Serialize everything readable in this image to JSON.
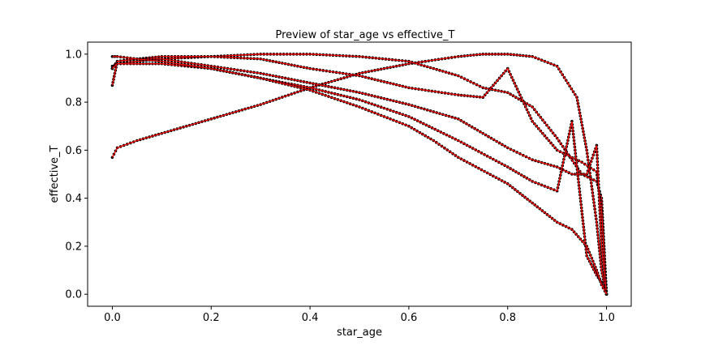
{
  "chart_data": {
    "type": "line",
    "title": "Preview of star_age vs effective_T",
    "xlabel": "star_age",
    "ylabel": "effective_T",
    "xlim": [
      -0.05,
      1.05
    ],
    "ylim": [
      -0.05,
      1.05
    ],
    "xticks": [
      0.0,
      0.2,
      0.4,
      0.6,
      0.8,
      1.0
    ],
    "xtick_labels": [
      "0.0",
      "0.2",
      "0.4",
      "0.6",
      "0.8",
      "1.0"
    ],
    "yticks": [
      0.0,
      0.2,
      0.4,
      0.6,
      0.8,
      1.0
    ],
    "ytick_labels": [
      "0.0",
      "0.2",
      "0.4",
      "0.6",
      "0.8",
      "1.0"
    ],
    "grid": false,
    "marker_color": "#000000",
    "line_color": "#ff0000",
    "series": [
      {
        "x": [
          0.0,
          0.01,
          0.05,
          0.1,
          0.2,
          0.3,
          0.4,
          0.5,
          0.6,
          0.7,
          0.75,
          0.8,
          0.85,
          0.9,
          0.94,
          0.96,
          0.98,
          0.99,
          1.0
        ],
        "y": [
          0.57,
          0.61,
          0.64,
          0.67,
          0.73,
          0.79,
          0.86,
          0.92,
          0.96,
          0.99,
          1.0,
          1.0,
          0.99,
          0.95,
          0.82,
          0.6,
          0.3,
          0.1,
          0.0
        ]
      },
      {
        "x": [
          0.0,
          0.01,
          0.05,
          0.1,
          0.2,
          0.3,
          0.4,
          0.5,
          0.6,
          0.7,
          0.75,
          0.8,
          0.85,
          0.9,
          0.95,
          0.98,
          0.99,
          1.0
        ],
        "y": [
          0.95,
          0.96,
          0.97,
          0.98,
          0.99,
          1.0,
          1.0,
          0.99,
          0.97,
          0.91,
          0.86,
          0.84,
          0.78,
          0.65,
          0.5,
          0.47,
          0.4,
          0.0
        ]
      },
      {
        "x": [
          0.0,
          0.01,
          0.05,
          0.1,
          0.2,
          0.3,
          0.4,
          0.5,
          0.6,
          0.7,
          0.75,
          0.8,
          0.85,
          0.9,
          0.95,
          0.98,
          0.99,
          1.0
        ],
        "y": [
          0.94,
          0.97,
          0.98,
          0.99,
          0.99,
          0.98,
          0.94,
          0.91,
          0.86,
          0.83,
          0.82,
          0.94,
          0.72,
          0.6,
          0.55,
          0.51,
          0.35,
          0.0
        ]
      },
      {
        "x": [
          0.0,
          0.01,
          0.05,
          0.1,
          0.2,
          0.3,
          0.4,
          0.5,
          0.6,
          0.7,
          0.8,
          0.85,
          0.9,
          0.93,
          0.96,
          0.98,
          0.99,
          1.0
        ],
        "y": [
          0.87,
          0.97,
          0.98,
          0.98,
          0.95,
          0.92,
          0.88,
          0.84,
          0.79,
          0.73,
          0.61,
          0.56,
          0.53,
          0.5,
          0.5,
          0.62,
          0.2,
          0.0
        ]
      },
      {
        "x": [
          0.0,
          0.01,
          0.05,
          0.1,
          0.2,
          0.3,
          0.4,
          0.5,
          0.6,
          0.7,
          0.8,
          0.85,
          0.9,
          0.93,
          0.96,
          0.98,
          0.99,
          1.0
        ],
        "y": [
          0.94,
          0.96,
          0.96,
          0.96,
          0.94,
          0.9,
          0.86,
          0.81,
          0.74,
          0.64,
          0.53,
          0.47,
          0.43,
          0.72,
          0.16,
          0.08,
          0.05,
          0.0
        ]
      },
      {
        "x": [
          0.0,
          0.01,
          0.05,
          0.1,
          0.2,
          0.3,
          0.4,
          0.5,
          0.6,
          0.65,
          0.7,
          0.8,
          0.85,
          0.9,
          0.93,
          0.96,
          0.98,
          0.99,
          1.0
        ],
        "y": [
          0.99,
          0.99,
          0.98,
          0.97,
          0.94,
          0.9,
          0.85,
          0.78,
          0.7,
          0.64,
          0.57,
          0.46,
          0.38,
          0.3,
          0.27,
          0.2,
          0.1,
          0.04,
          0.0
        ]
      }
    ]
  }
}
